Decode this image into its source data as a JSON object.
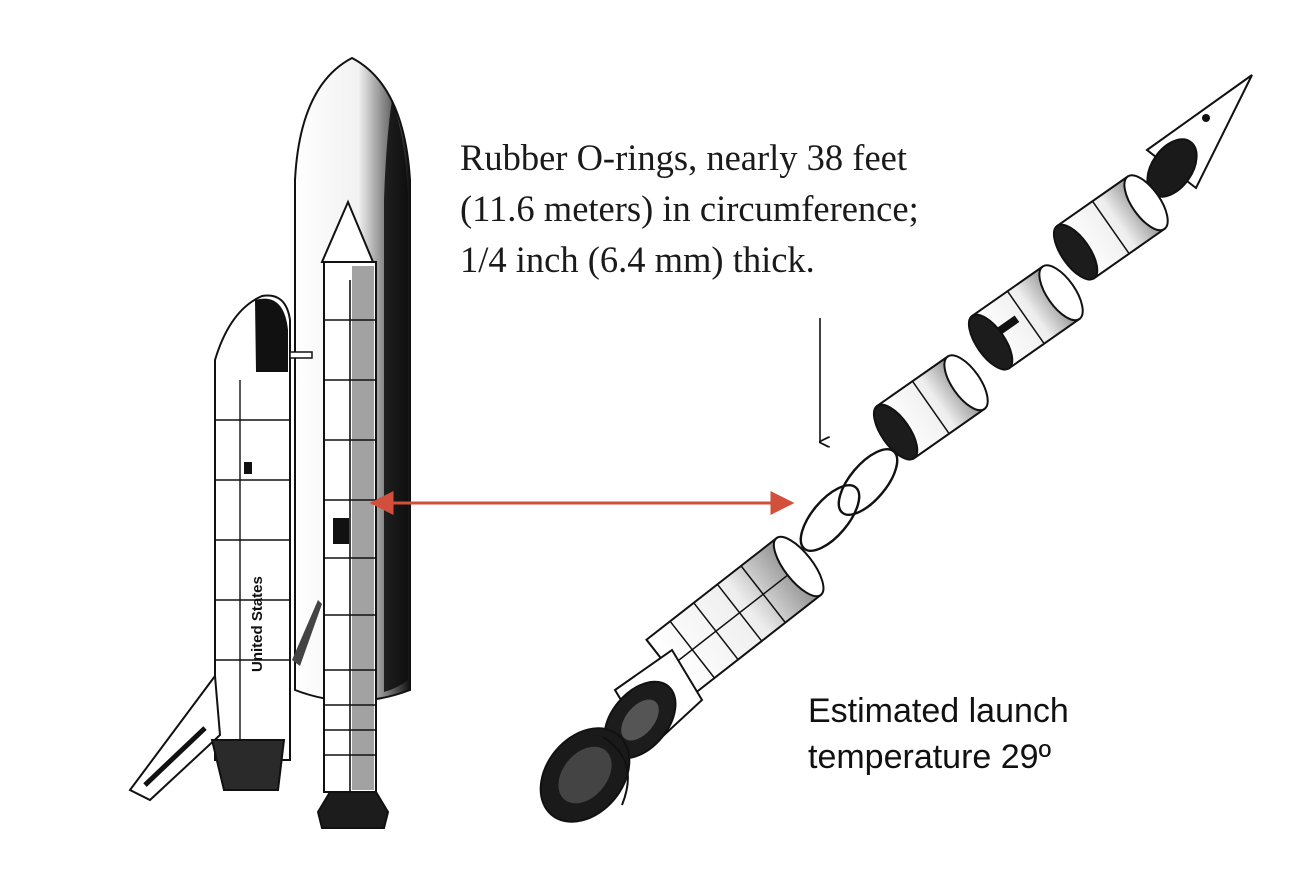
{
  "annotation_top": {
    "lines": [
      "Rubber O-rings, nearly 38 feet",
      "(11.6 meters) in circumference;",
      "1/4 inch (6.4 mm) thick."
    ]
  },
  "annotation_bottom": {
    "lines": [
      "Estimated launch",
      "temperature 29º"
    ]
  },
  "orbiter_label": "United States",
  "colors": {
    "connector_arrow": "#d24f3c",
    "ink": "#111111",
    "background": "#ffffff"
  }
}
